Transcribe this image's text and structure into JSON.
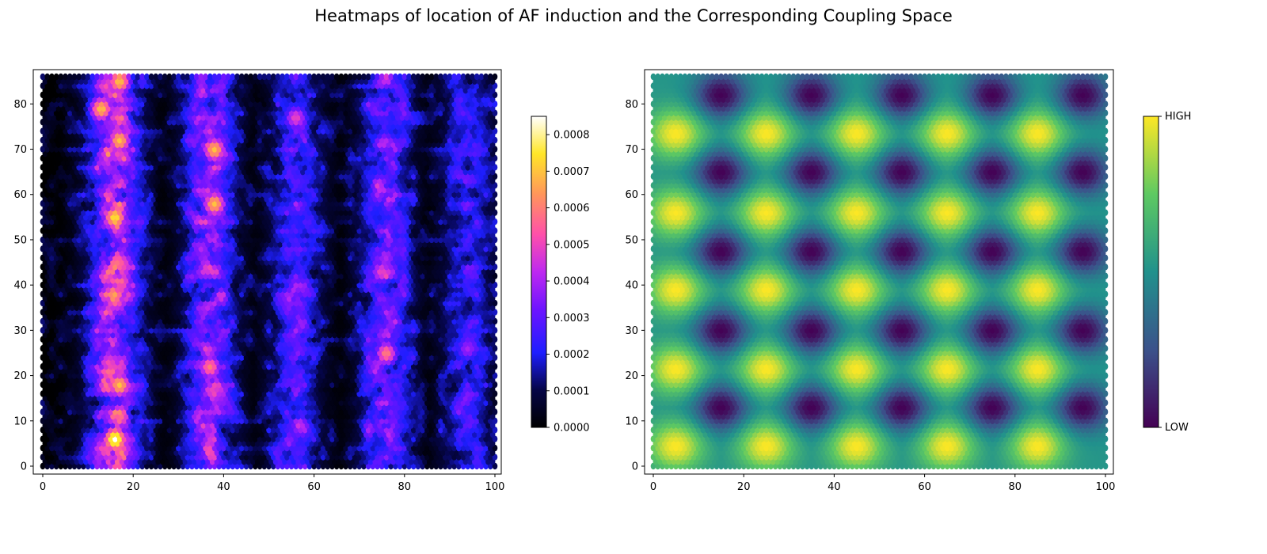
{
  "title": "Heatmaps of location of AF induction and the Corresponding Coupling Space",
  "chart_data": [
    {
      "type": "heatmap",
      "subtype": "hexbin",
      "colormap": "gnuplot2",
      "xlim": [
        0,
        100
      ],
      "ylim": [
        0,
        86
      ],
      "xticks": [
        0,
        20,
        40,
        60,
        80,
        100
      ],
      "yticks": [
        0,
        10,
        20,
        30,
        40,
        50,
        60,
        70,
        80
      ],
      "colorbar": {
        "range": [
          0,
          0.00085
        ],
        "ticks": [
          0,
          0.0001,
          0.0002,
          0.0003,
          0.0004,
          0.0005,
          0.0006,
          0.0007,
          0.0008
        ],
        "tick_labels": [
          "0.0000",
          "0.0001",
          "0.0002",
          "0.0003",
          "0.0004",
          "0.0005",
          "0.0006",
          "0.0007",
          "0.0008"
        ]
      },
      "bands": [
        {
          "x_center": 16,
          "peak": 0.00085
        },
        {
          "x_center": 37,
          "peak": 0.0007
        },
        {
          "x_center": 56,
          "peak": 0.0005
        },
        {
          "x_center": 76,
          "peak": 0.0006
        },
        {
          "x_center": 94,
          "peak": 0.0004
        }
      ],
      "hotspots": [
        {
          "x": 16,
          "y": 6,
          "value": 0.00085
        },
        {
          "x": 17,
          "y": 18,
          "value": 0.0007
        },
        {
          "x": 16,
          "y": 55,
          "value": 0.00075
        },
        {
          "x": 17,
          "y": 72,
          "value": 0.0007
        },
        {
          "x": 13,
          "y": 79,
          "value": 0.0007
        },
        {
          "x": 17,
          "y": 85,
          "value": 0.0007
        },
        {
          "x": 38,
          "y": 58,
          "value": 0.0007
        },
        {
          "x": 38,
          "y": 70,
          "value": 0.0007
        },
        {
          "x": 37,
          "y": 22,
          "value": 0.0006
        },
        {
          "x": 56,
          "y": 77,
          "value": 0.0005
        },
        {
          "x": 76,
          "y": 25,
          "value": 0.0006
        },
        {
          "x": 75,
          "y": 43,
          "value": 0.0005
        },
        {
          "x": 94,
          "y": 26,
          "value": 0.0004
        }
      ]
    },
    {
      "type": "heatmap",
      "subtype": "hexbin",
      "colormap": "viridis",
      "xlim": [
        0,
        100
      ],
      "ylim": [
        0,
        86
      ],
      "xticks": [
        0,
        20,
        40,
        60,
        80,
        100
      ],
      "yticks": [
        0,
        10,
        20,
        30,
        40,
        50,
        60,
        70,
        80
      ],
      "colorbar": {
        "high_label": "HIGH",
        "low_label": "LOW"
      },
      "peaks": {
        "x": [
          5,
          25,
          45,
          65,
          85
        ],
        "y": [
          4.5,
          21.5,
          39,
          56,
          73.5
        ]
      },
      "troughs": {
        "x": [
          15,
          35,
          55,
          75,
          95
        ],
        "y": [
          13,
          30,
          47.5,
          65,
          82
        ]
      }
    }
  ]
}
